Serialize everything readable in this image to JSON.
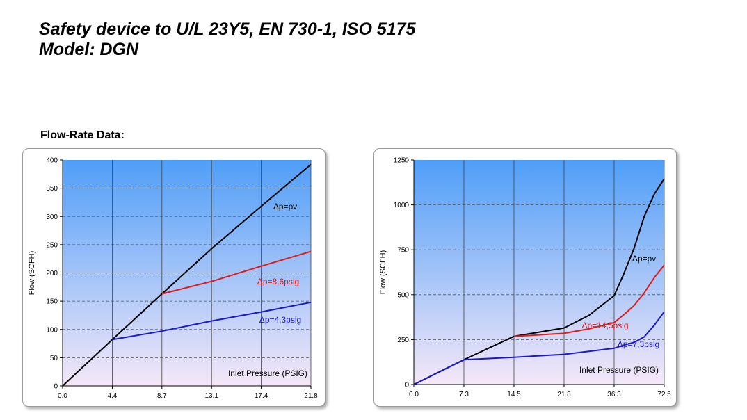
{
  "header": {
    "title_line1": "Safety device to U/L 23Y5, EN 730-1, ISO 5175",
    "title_line2": "Model: DGN"
  },
  "section_label": "Flow-Rate Data:",
  "colors": {
    "plot_top": "#4f9ef8",
    "plot_bottom": "#f5e8f8",
    "series_black": "#000000",
    "series_red": "#e01b1b",
    "series_blue": "#1a1acc"
  },
  "chart_data": [
    {
      "type": "line",
      "xlabel": "Inlet Pressure (PSIG)",
      "ylabel": "Flow  (SCFH)",
      "x_ticks": [
        "0.0",
        "4.4",
        "8.7",
        "13.1",
        "17.4",
        "21.8"
      ],
      "y_ticks": [
        "0",
        "50",
        "100",
        "150",
        "200",
        "250",
        "300",
        "350",
        "400"
      ],
      "xlim": [
        0,
        21.8
      ],
      "ylim": [
        0,
        400
      ],
      "grid": true,
      "series": [
        {
          "name": "Δp=pv",
          "color": "#000000",
          "x": [
            0,
            4.4,
            8.7,
            13.1,
            17.4,
            21.8
          ],
          "y": [
            0,
            82,
            163,
            243,
            318,
            392
          ]
        },
        {
          "name": "Δp=8,6psig",
          "color": "#e01b1b",
          "x": [
            8.7,
            13.1,
            17.4,
            21.8
          ],
          "y": [
            163,
            185,
            212,
            238
          ]
        },
        {
          "name": "Δp=4,3psig",
          "color": "#1a1acc",
          "x": [
            4.4,
            8.7,
            13.1,
            17.4,
            21.8
          ],
          "y": [
            82,
            97,
            115,
            131,
            148
          ]
        }
      ]
    },
    {
      "type": "line",
      "xlabel": "Inlet Pressure (PSIG)",
      "ylabel": "Flow  (SCFH)",
      "x_ticks": [
        "0.0",
        "7.3",
        "14.5",
        "21.8",
        "36.3",
        "72.5"
      ],
      "y_ticks": [
        "0",
        "250",
        "500",
        "750",
        "1000",
        "1250"
      ],
      "xlim": [
        0,
        72.5
      ],
      "ylim": [
        0,
        1250
      ],
      "grid": true,
      "series": [
        {
          "name": "Δp=pv",
          "color": "#000000",
          "x": [
            0,
            7.3,
            14.5,
            21.8,
            29,
            36.3,
            43.5,
            50.8,
            58,
            65.3,
            72.5
          ],
          "y": [
            0,
            138,
            268,
            315,
            385,
            495,
            620,
            760,
            935,
            1060,
            1145
          ]
        },
        {
          "name": "Δp=14,5psig",
          "color": "#e01b1b",
          "x": [
            14.5,
            21.8,
            29,
            36.3,
            43.5,
            50.8,
            58,
            65.3,
            72.5
          ],
          "y": [
            268,
            285,
            310,
            345,
            390,
            440,
            510,
            595,
            665
          ]
        },
        {
          "name": "Δp=7,3psig",
          "color": "#1a1acc",
          "x": [
            0,
            7.3,
            14.5,
            21.8,
            29,
            36.3,
            43.5,
            50.8,
            58,
            65.3,
            72.5
          ],
          "y": [
            0,
            138,
            152,
            168,
            185,
            202,
            220,
            235,
            265,
            330,
            405
          ]
        }
      ]
    }
  ]
}
